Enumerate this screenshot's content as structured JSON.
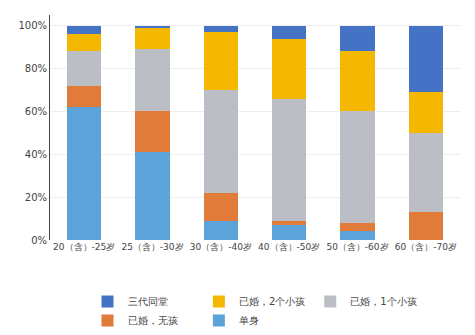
{
  "chart_data": {
    "type": "bar",
    "stacked": true,
    "categories": [
      "20（含）-25岁",
      "25（含）-30岁",
      "30（含）-40岁",
      "40（含）-50岁",
      "50（含）-60岁",
      "60（含）-70岁"
    ],
    "series": [
      {
        "name": "单身",
        "color": "#5BA3D9",
        "values": [
          0.62,
          0.41,
          0.09,
          0.07,
          0.04,
          0.0
        ]
      },
      {
        "name": "已婚，无孩",
        "color": "#E07B39",
        "values": [
          0.1,
          0.19,
          0.13,
          0.02,
          0.04,
          0.13
        ]
      },
      {
        "name": "已婚，1个小孩",
        "color": "#BBBEC4",
        "values": [
          0.16,
          0.29,
          0.48,
          0.57,
          0.52,
          0.37
        ]
      },
      {
        "name": "已婚，2个小孩",
        "color": "#F5B800",
        "values": [
          0.08,
          0.1,
          0.27,
          0.28,
          0.28,
          0.19
        ]
      },
      {
        "name": "三代同堂",
        "color": "#4472C4",
        "values": [
          0.04,
          0.01,
          0.03,
          0.06,
          0.12,
          0.31
        ]
      }
    ],
    "ylim": [
      0,
      1.05
    ],
    "yticks": [
      {
        "value": 0,
        "label": "0%"
      },
      {
        "value": 0.2,
        "label": "20%"
      },
      {
        "value": 0.4,
        "label": "40%"
      },
      {
        "value": 0.6,
        "label": "60%"
      },
      {
        "value": 0.8,
        "label": "80%"
      },
      {
        "value": 1.0,
        "label": "100%"
      }
    ],
    "grid": true,
    "legend": "bottom"
  }
}
